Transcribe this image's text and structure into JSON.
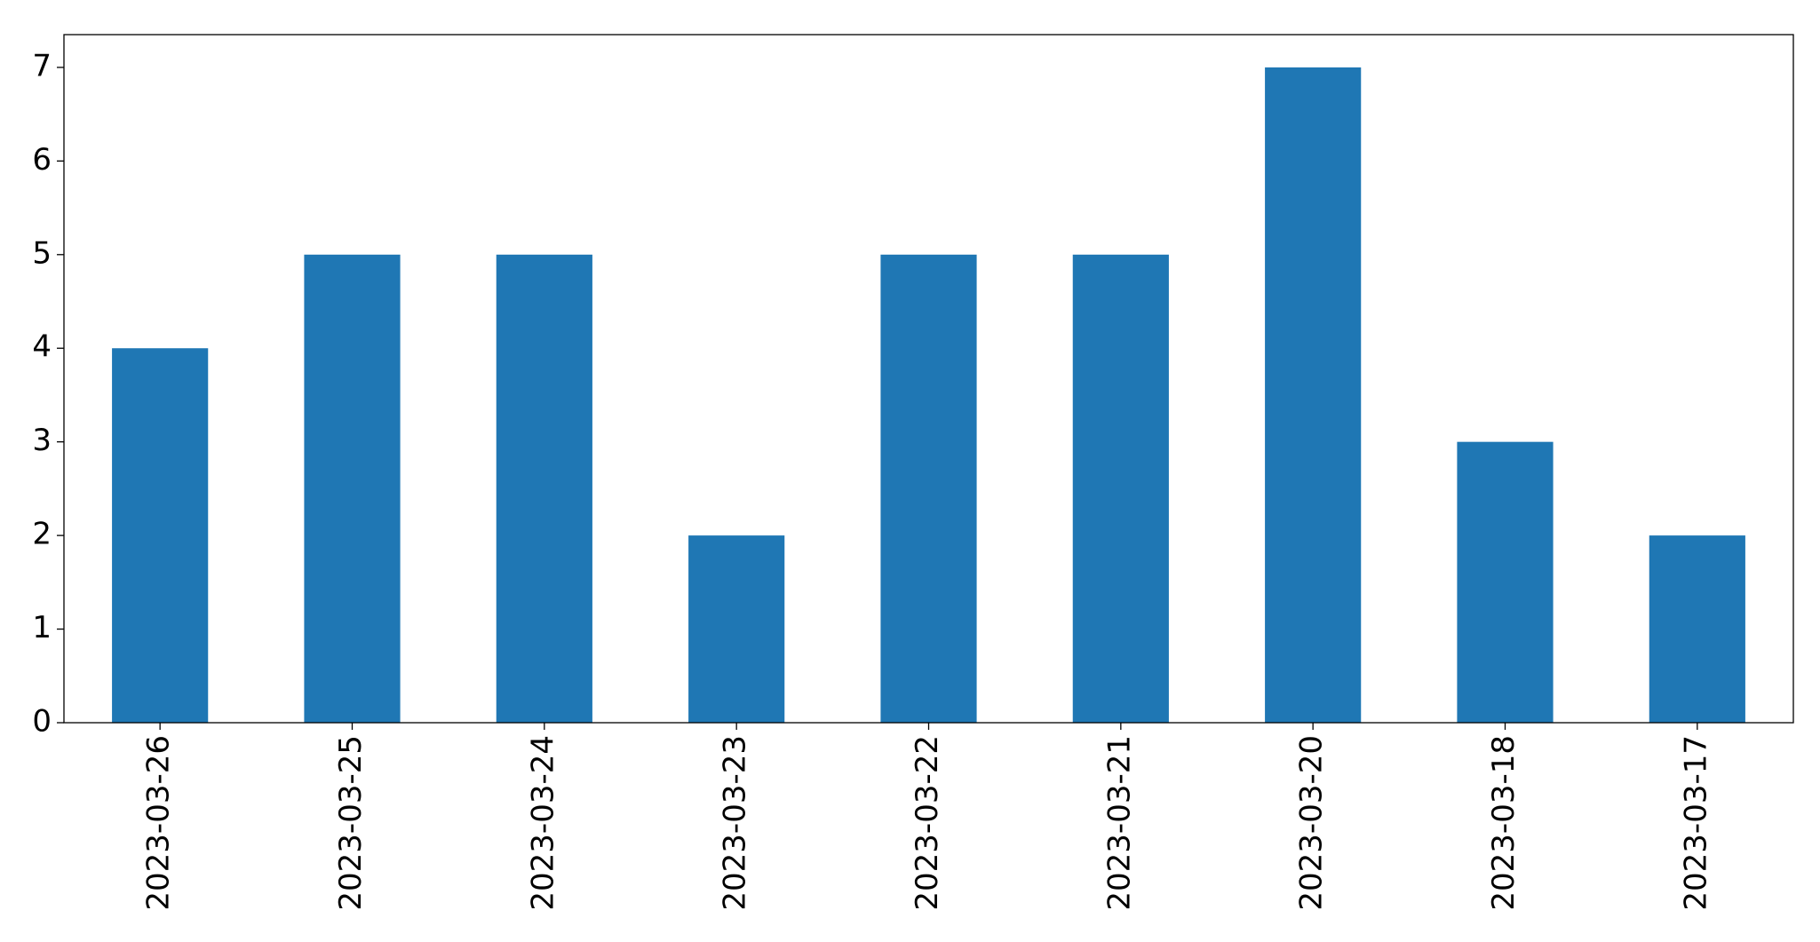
{
  "chart_data": {
    "type": "bar",
    "categories": [
      "2023-03-26",
      "2023-03-25",
      "2023-03-24",
      "2023-03-23",
      "2023-03-22",
      "2023-03-21",
      "2023-03-20",
      "2023-03-18",
      "2023-03-17"
    ],
    "values": [
      4,
      5,
      5,
      2,
      5,
      5,
      7,
      3,
      2
    ],
    "color": "#1f77b4",
    "ylim": [
      0,
      7.35
    ],
    "yticks": [
      0,
      1,
      2,
      3,
      4,
      5,
      6,
      7
    ],
    "grid": false
  }
}
